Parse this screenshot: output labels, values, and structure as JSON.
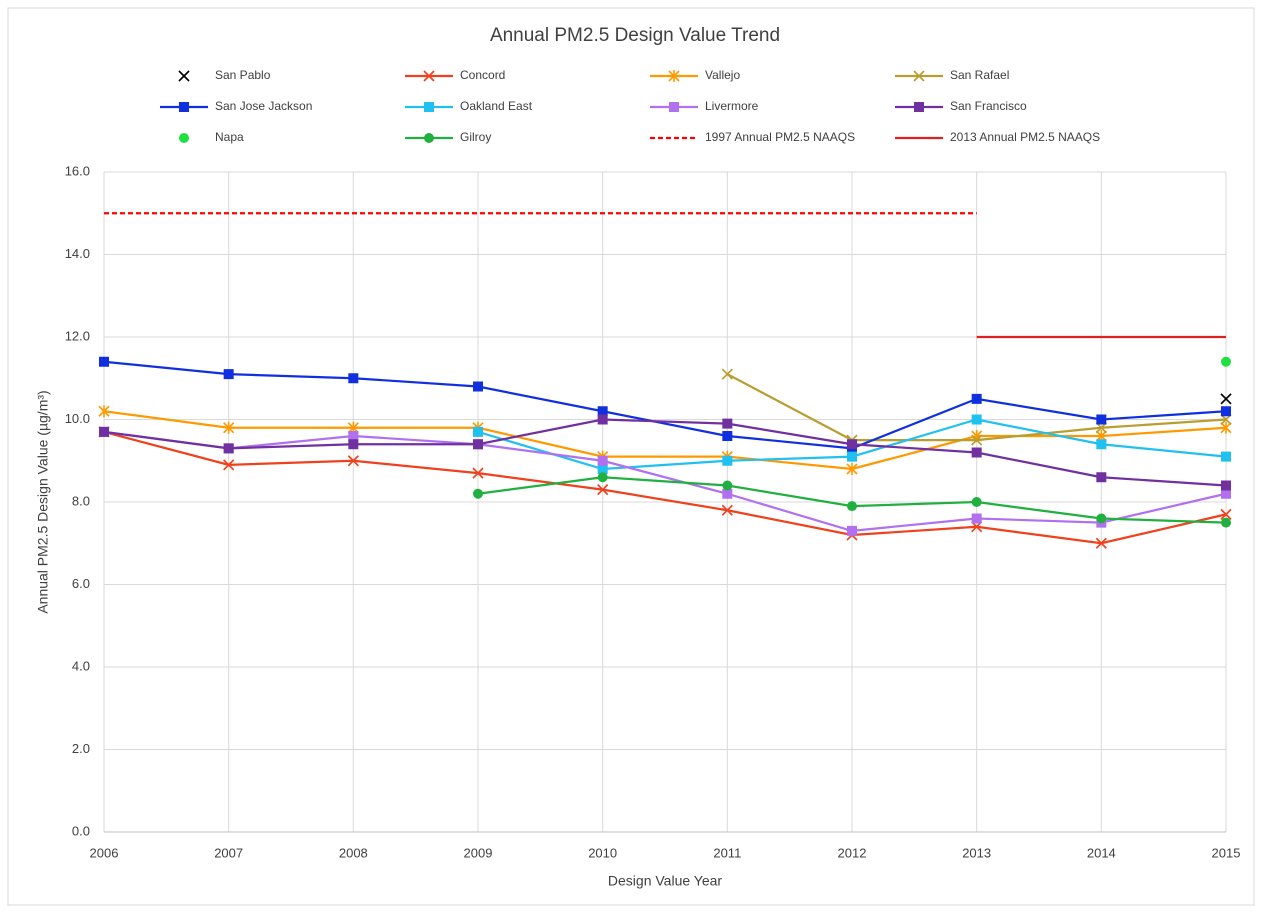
{
  "chart_data": {
    "type": "line",
    "title": "Annual PM2.5 Design Value Trend",
    "x_label": "Design Value Year",
    "y_label": "Annual PM2.5 Design Value (µg/m³)",
    "x": [
      2006,
      2007,
      2008,
      2009,
      2010,
      2011,
      2012,
      2013,
      2014,
      2015
    ],
    "xlim": [
      2006,
      2015
    ],
    "xticks": [
      2006,
      2007,
      2008,
      2009,
      2010,
      2011,
      2012,
      2013,
      2014,
      2015
    ],
    "ylim": [
      0,
      16
    ],
    "yticks": [
      {
        "value": 0,
        "label": "0.0"
      },
      {
        "value": 2,
        "label": "2.0"
      },
      {
        "value": 4,
        "label": "4.0"
      },
      {
        "value": 6,
        "label": "6.0"
      },
      {
        "value": 8,
        "label": "8.0"
      },
      {
        "value": 10,
        "label": "10.0"
      },
      {
        "value": 12,
        "label": "12.0"
      },
      {
        "value": 14,
        "label": "14.0"
      },
      {
        "value": 16,
        "label": "16.0"
      }
    ],
    "grid": true,
    "legend": "top",
    "series": [
      {
        "name": "San Pablo",
        "color": "#000000",
        "marker": "x",
        "line": false,
        "values": [
          null,
          null,
          null,
          null,
          null,
          null,
          null,
          null,
          null,
          10.5
        ]
      },
      {
        "name": "Concord",
        "color": "#f0401c",
        "marker": "x",
        "line": true,
        "values": [
          9.7,
          8.9,
          9.0,
          8.7,
          8.3,
          7.8,
          7.2,
          7.4,
          7.0,
          7.7
        ]
      },
      {
        "name": "Vallejo",
        "color": "#ff9900",
        "marker": "star",
        "line": true,
        "values": [
          10.2,
          9.8,
          9.8,
          9.8,
          9.1,
          9.1,
          8.8,
          9.6,
          9.6,
          9.8
        ]
      },
      {
        "name": "San Rafael",
        "color": "#b89e30",
        "marker": "x",
        "line": true,
        "values": [
          null,
          null,
          null,
          null,
          null,
          11.1,
          9.5,
          9.5,
          9.8,
          10.0
        ]
      },
      {
        "name": "San Jose Jackson",
        "color": "#1030e0",
        "marker": "square",
        "line": true,
        "values": [
          11.4,
          11.1,
          11.0,
          10.8,
          10.2,
          9.6,
          9.3,
          10.5,
          10.0,
          10.2
        ]
      },
      {
        "name": "Oakland East",
        "color": "#20c0f0",
        "marker": "square",
        "line": true,
        "values": [
          null,
          null,
          null,
          9.7,
          8.8,
          9.0,
          9.1,
          10.0,
          9.4,
          9.1
        ]
      },
      {
        "name": "Livermore",
        "color": "#b070f0",
        "marker": "square",
        "line": true,
        "values": [
          9.7,
          9.3,
          9.6,
          9.4,
          9.0,
          8.2,
          7.3,
          7.6,
          7.5,
          8.2
        ]
      },
      {
        "name": "San Francisco",
        "color": "#7030a0",
        "marker": "square",
        "line": true,
        "values": [
          9.7,
          9.3,
          9.4,
          9.4,
          10.0,
          9.9,
          9.4,
          9.2,
          8.6,
          8.4
        ]
      },
      {
        "name": "Napa",
        "color": "#20e040",
        "marker": "circle",
        "line": false,
        "values": [
          null,
          null,
          null,
          null,
          null,
          null,
          null,
          null,
          null,
          11.4
        ]
      },
      {
        "name": "Gilroy",
        "color": "#20b040",
        "marker": "circle",
        "line": true,
        "values": [
          null,
          null,
          null,
          8.2,
          8.6,
          8.4,
          7.9,
          8.0,
          7.6,
          7.5
        ]
      },
      {
        "name": "1997 Annual PM2.5 NAAQS",
        "color": "#ff0000",
        "marker": "none",
        "line": true,
        "dash": true,
        "values": [
          15,
          15,
          15,
          15,
          15,
          15,
          15,
          15,
          null,
          null
        ]
      },
      {
        "name": "2013 Annual PM2.5 NAAQS",
        "color": "#e02020",
        "marker": "none",
        "line": true,
        "values": [
          null,
          null,
          null,
          null,
          null,
          null,
          null,
          12,
          12,
          12
        ]
      }
    ]
  }
}
